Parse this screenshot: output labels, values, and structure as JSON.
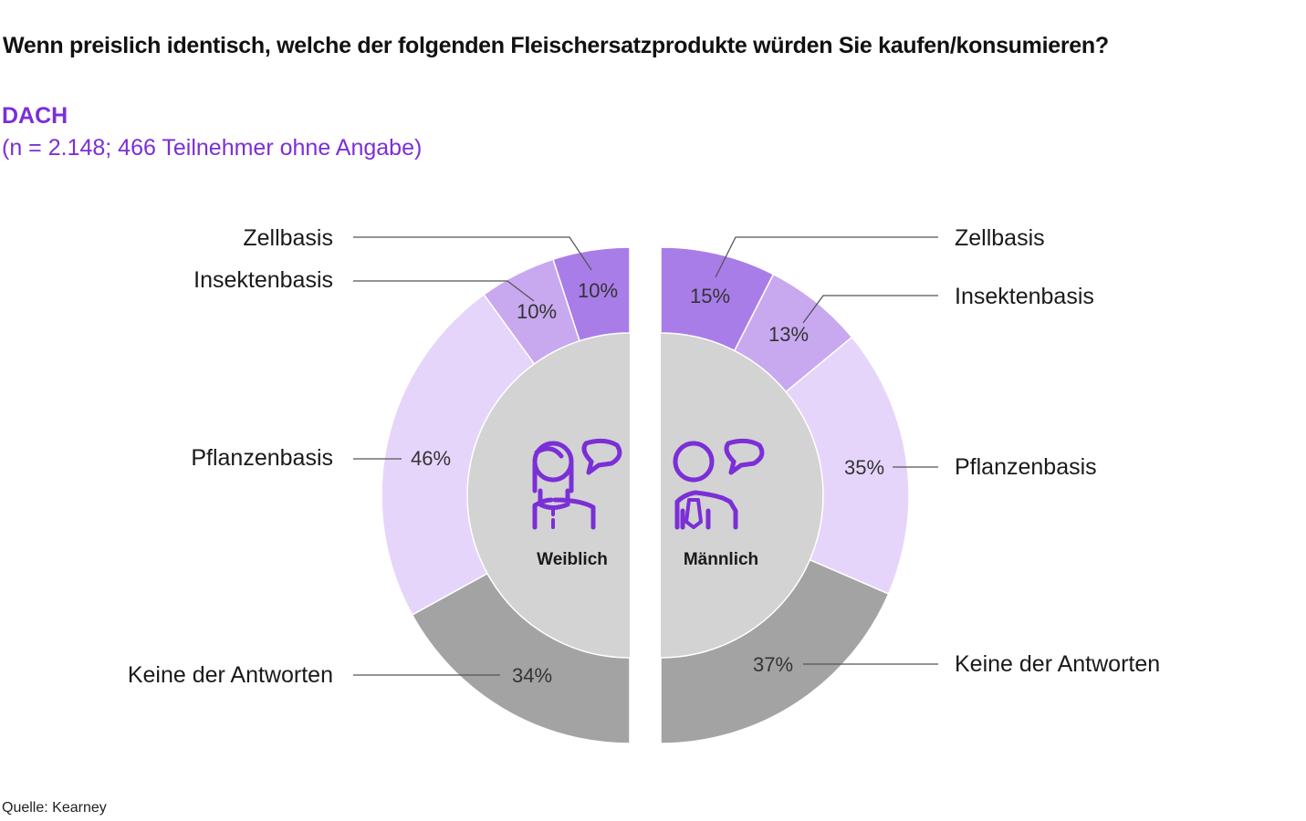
{
  "header": {
    "title": "Wenn preislich identisch, welche der folgenden Fleischersatzprodukte würden Sie kaufen/konsumieren?",
    "region": "DACH",
    "sample": "(n = 2.148; 466 Teilnehmer ohne Angabe)"
  },
  "footer": {
    "source": "Quelle: Kearney"
  },
  "colors": {
    "zellbasis": "#a97de8",
    "insektenbasis": "#c8a9f0",
    "pflanzenbasis": "#e6d5fa",
    "keine": "#a3a3a3",
    "center": "#d3d3d3",
    "icon": "#7b2fd6",
    "leader": "#555555"
  },
  "chart_data": {
    "type": "pie",
    "categories": [
      "Zellbasis",
      "Insektenbasis",
      "Pflanzenbasis",
      "Keine der Antworten"
    ],
    "series": [
      {
        "name": "Weiblich",
        "icon": "female-person-speech-icon",
        "values": [
          10,
          10,
          46,
          34
        ],
        "value_labels": [
          "10%",
          "10%",
          "46%",
          "34%"
        ]
      },
      {
        "name": "Männlich",
        "icon": "male-person-speech-icon",
        "values": [
          15,
          13,
          35,
          37
        ],
        "value_labels": [
          "15%",
          "13%",
          "35%",
          "37%"
        ]
      }
    ],
    "title": "Wenn preislich identisch, welche der folgenden Fleischersatzprodukte würden Sie kaufen/konsumieren?",
    "subtitle": "DACH (n = 2.148; 466 Teilnehmer ohne Angabe)",
    "legend": "none"
  }
}
